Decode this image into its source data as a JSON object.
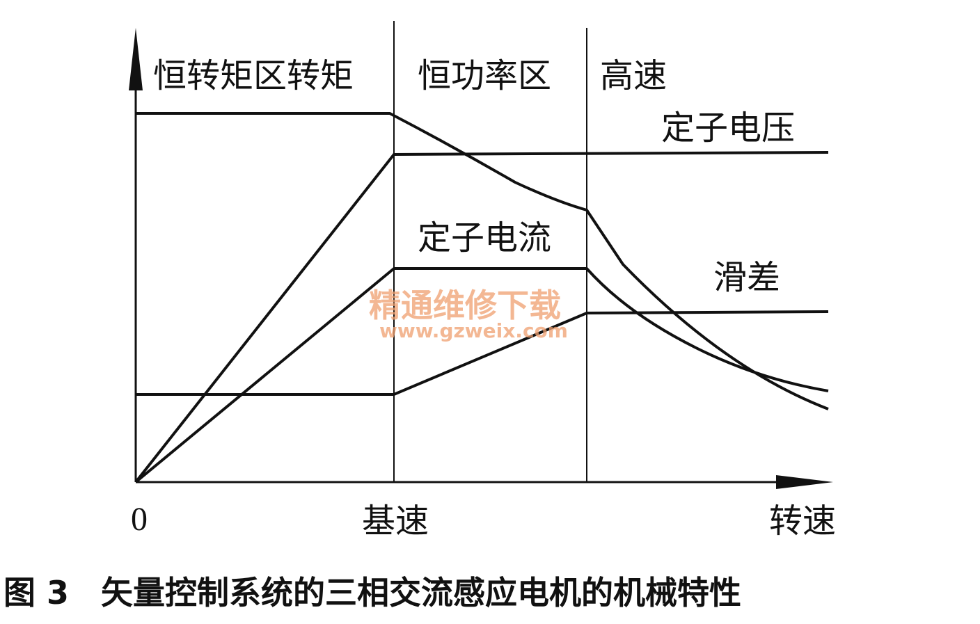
{
  "regions": [
    "恒转矩区转矩",
    "恒功率区",
    "高速"
  ],
  "curve_labels": {
    "voltage": "定子电压",
    "current": "定子电流",
    "slip": "滑差"
  },
  "axis": {
    "origin": "0",
    "base_speed": "基速",
    "x_label": "转速"
  },
  "watermark": {
    "title": "精通维修下载",
    "url": "www.gzweix.com"
  },
  "caption": "图 3　矢量控制系统的三相交流感应电机的机械特性"
}
